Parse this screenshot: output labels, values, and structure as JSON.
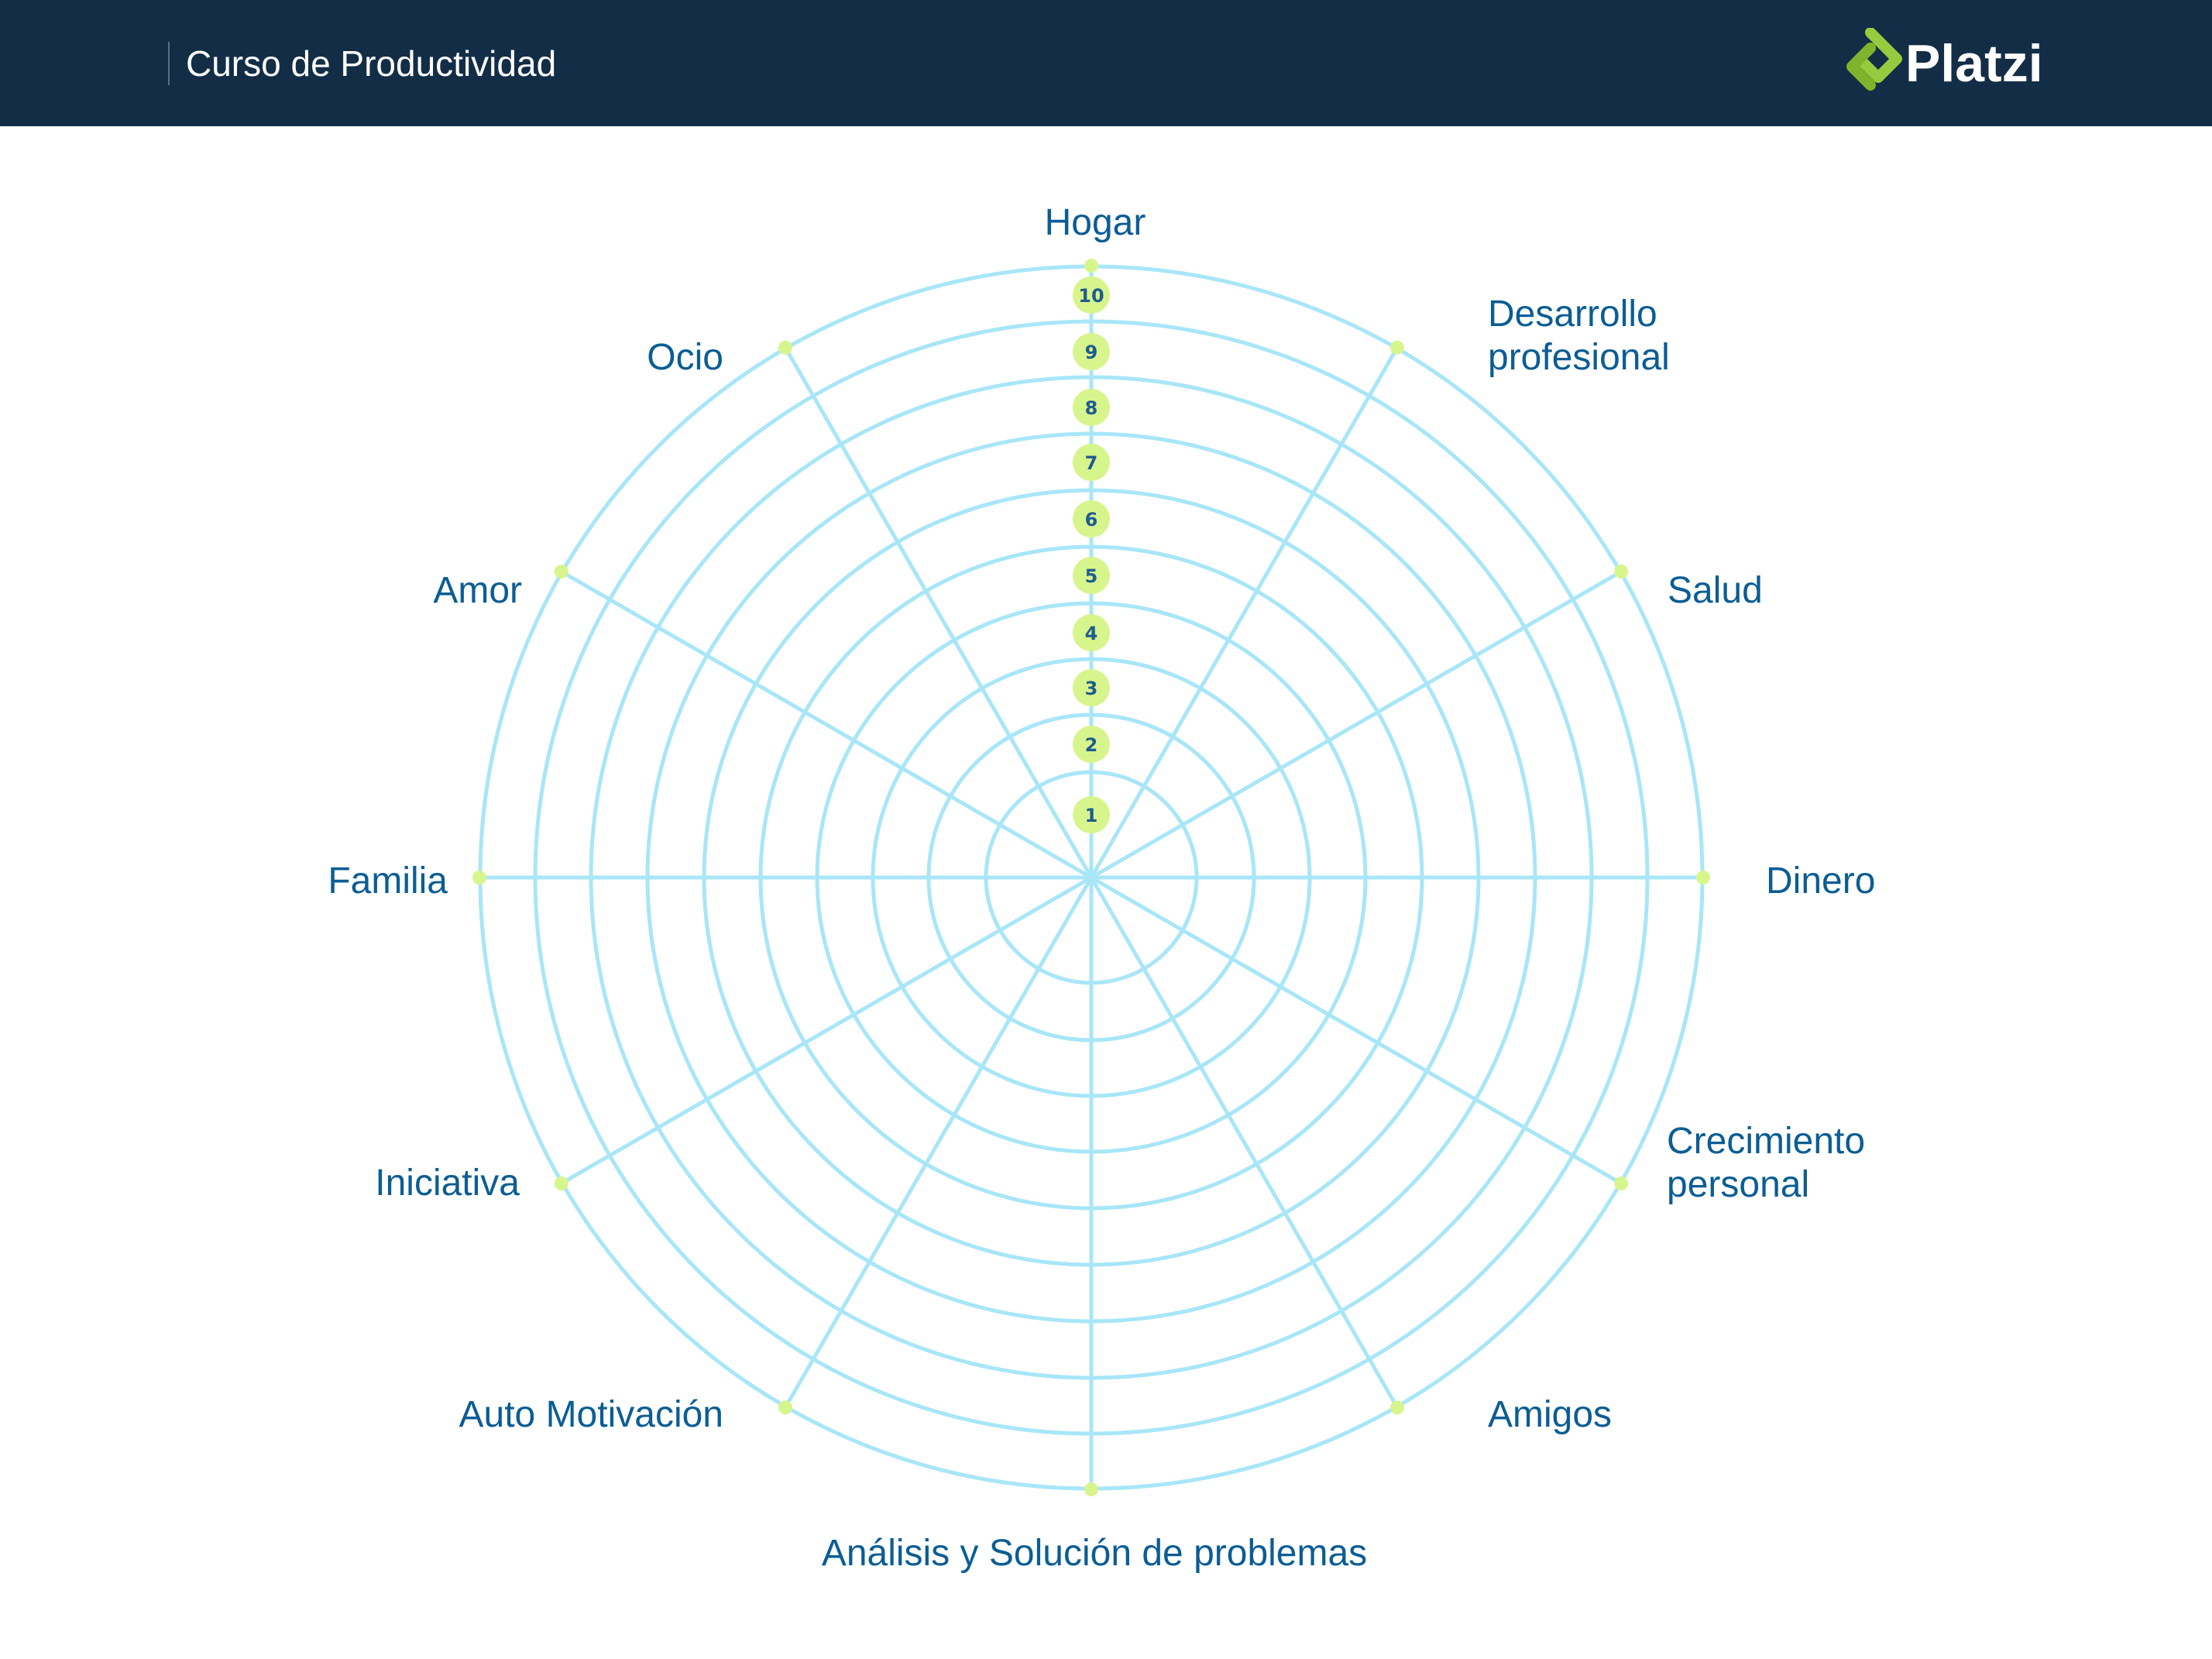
{
  "header": {
    "course_title": "Curso de Productividad",
    "logo_text": "Platzi",
    "logo_icon": "platzi-logo-icon"
  },
  "colors": {
    "header_bg": "#132d46",
    "ring_stroke": "#a8e6f8",
    "marker_fill": "#d7f58d",
    "label_text": "#0b5d94",
    "level_text": "#1f5c8e",
    "logo_green": "#98ca3f"
  },
  "wheel": {
    "levels": [
      "1",
      "2",
      "3",
      "4",
      "5",
      "6",
      "7",
      "8",
      "9",
      "10"
    ],
    "axes": [
      {
        "label": "Hogar"
      },
      {
        "label": "Desarrollo profesional",
        "lines": [
          "Desarrollo",
          "profesional"
        ]
      },
      {
        "label": "Salud"
      },
      {
        "label": "Dinero"
      },
      {
        "label": "Crecimiento personal",
        "lines": [
          "Crecimiento",
          "personal"
        ]
      },
      {
        "label": "Amigos"
      },
      {
        "label": "Análisis y Solución de problemas"
      },
      {
        "label": "Auto Motivación"
      },
      {
        "label": "Iniciativa"
      },
      {
        "label": "Familia"
      },
      {
        "label": "Amor"
      },
      {
        "label": "Ocio"
      }
    ]
  }
}
